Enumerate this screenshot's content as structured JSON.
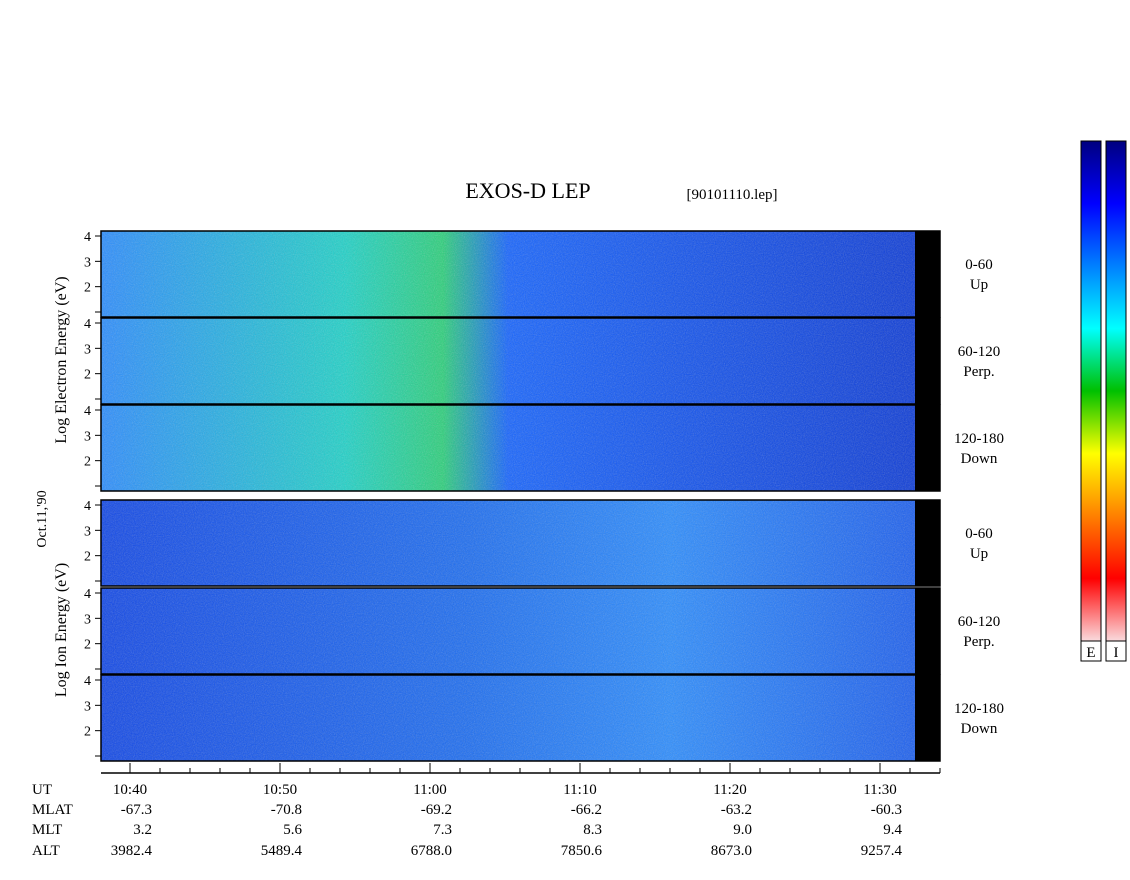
{
  "title": "EXOS-D LEP",
  "file_label": "[90101110.lep]",
  "date_label": "Oct.11,'90",
  "colors": {
    "colorbar_stops": [
      "#fadadd",
      "#ff0000",
      "#ff8000",
      "#ffff00",
      "#00c000",
      "#00ffff",
      "#0080ff",
      "#0000ff",
      "#000080"
    ]
  },
  "chart_data": {
    "type": "heatmap",
    "electron_group": {
      "ylabel_lines": [
        "Log",
        "Electron",
        "Energy",
        "(eV)"
      ],
      "panels": [
        {
          "angle": "0-60",
          "direction": "Up"
        },
        {
          "angle": "60-120",
          "direction": "Perp."
        },
        {
          "angle": "120-180",
          "direction": "Down"
        }
      ]
    },
    "ion_group": {
      "ylabel_lines": [
        "Log",
        "Ion",
        "Energy",
        "(eV)"
      ],
      "panels": [
        {
          "angle": "0-60",
          "direction": "Up"
        },
        {
          "angle": "60-120",
          "direction": "Perp."
        },
        {
          "angle": "120-180",
          "direction": "Down"
        }
      ]
    },
    "y_ticks": [
      4,
      3,
      2
    ],
    "ylim": [
      1,
      4
    ],
    "colorbars": [
      "E",
      "I"
    ],
    "x_axis": {
      "row_labels": [
        "UT",
        "MLAT",
        "MLT",
        "ALT"
      ],
      "columns": [
        {
          "UT": "10:40",
          "MLAT": "-67.3",
          "MLT": "3.2",
          "ALT": "3982.4"
        },
        {
          "UT": "10:50",
          "MLAT": "-70.8",
          "MLT": "5.6",
          "ALT": "5489.4"
        },
        {
          "UT": "11:00",
          "MLAT": "-69.2",
          "MLT": "7.3",
          "ALT": "6788.0"
        },
        {
          "UT": "11:10",
          "MLAT": "-66.2",
          "MLT": "8.3",
          "ALT": "7850.6"
        },
        {
          "UT": "11:20",
          "MLAT": "-63.2",
          "MLT": "9.0",
          "ALT": "8673.0"
        },
        {
          "UT": "11:30",
          "MLAT": "-60.3",
          "MLT": "9.4",
          "ALT": "9257.4"
        }
      ]
    }
  }
}
